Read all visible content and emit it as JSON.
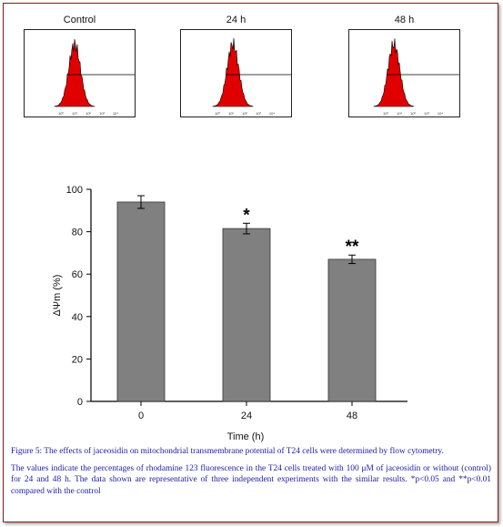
{
  "histograms": {
    "panels": [
      {
        "label": "Control"
      },
      {
        "label": "24 h"
      },
      {
        "label": "48 h"
      }
    ],
    "axis_tick_labels": [
      "10⁰",
      "10¹",
      "10²",
      "10³",
      "10⁴"
    ]
  },
  "chart_data": {
    "type": "bar",
    "categories": [
      "0",
      "24",
      "48"
    ],
    "values": [
      94,
      81.5,
      67
    ],
    "errors": [
      3,
      2.5,
      2
    ],
    "significance": [
      "",
      "*",
      "**"
    ],
    "title": "",
    "xlabel": "Time (h)",
    "ylabel": "ΔΨm (%)",
    "ylim": [
      0,
      100
    ],
    "yticks": [
      0,
      20,
      40,
      60,
      80,
      100
    ],
    "bar_color": "#808080",
    "grid": false
  },
  "caption": {
    "title": "Figure 5: The effects of jaceosidin on mitochondrial transmembrane potential of T24 cells were determined by flow cytometry.",
    "body": "The values indicate the percentages of rhodamine 123 fluorescence in the T24 cells treated with 100 μM of jaceosidin or without (control) for 24 and 48 h. The data shown are representative of three independent experiments with the similar results. *p<0.05 and **p<0.01 compared with the control"
  },
  "colors": {
    "frame_border": "#8b1a1a",
    "caption_text": "#1a1aa6",
    "histogram_fill": "#e00000"
  }
}
